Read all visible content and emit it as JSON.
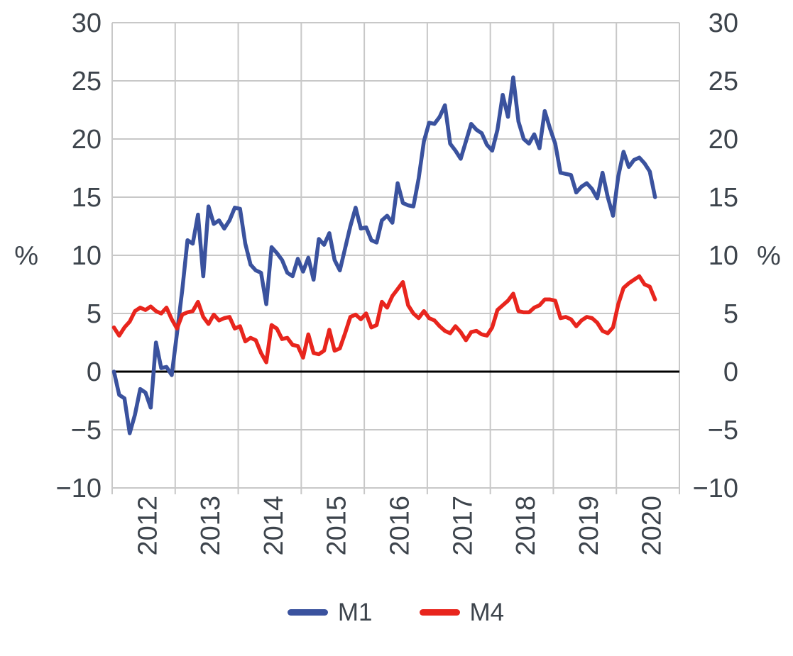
{
  "chart_data": {
    "type": "line",
    "title": "",
    "frequency": "monthly",
    "x_start": "2012-01",
    "x_end": "2020-08",
    "x_year_labels": [
      "2012",
      "2013",
      "2014",
      "2015",
      "2016",
      "2017",
      "2018",
      "2019",
      "2020"
    ],
    "ylim": [
      -10,
      30
    ],
    "y_ticks": [
      30,
      25,
      20,
      15,
      10,
      5,
      0,
      -5,
      -10
    ],
    "y_tick_labels": [
      "30",
      "25",
      "20",
      "15",
      "10",
      "5",
      "0",
      "−5",
      "−10"
    ],
    "ylabel_left": "%",
    "ylabel_right": "%",
    "grid": true,
    "zero_line": true,
    "legend_position": "bottom",
    "series": [
      {
        "name": "M1",
        "color": "#3a529e",
        "values": [
          0.0,
          -2.0,
          -2.3,
          -5.3,
          -3.7,
          -1.5,
          -1.8,
          -3.1,
          2.5,
          0.3,
          0.4,
          -0.3,
          3.3,
          7.0,
          11.3,
          11.0,
          13.5,
          8.2,
          14.2,
          12.7,
          13.0,
          12.3,
          13.0,
          14.1,
          14.0,
          11.0,
          9.2,
          8.7,
          8.5,
          5.8,
          10.7,
          10.2,
          9.6,
          8.5,
          8.2,
          9.7,
          8.6,
          9.8,
          7.9,
          11.4,
          10.9,
          11.9,
          9.6,
          8.7,
          10.6,
          12.5,
          14.1,
          12.3,
          12.4,
          11.3,
          11.1,
          13.0,
          13.4,
          12.8,
          16.2,
          14.5,
          14.3,
          14.2,
          16.6,
          19.8,
          21.4,
          21.3,
          21.9,
          22.9,
          19.6,
          19.0,
          18.3,
          19.8,
          21.3,
          20.8,
          20.5,
          19.5,
          19.0,
          20.8,
          23.8,
          21.9,
          25.3,
          21.5,
          20.0,
          19.6,
          20.4,
          19.2,
          22.4,
          20.9,
          19.6,
          17.1,
          17.0,
          16.9,
          15.4,
          15.9,
          16.2,
          15.7,
          14.9,
          17.1,
          15.0,
          13.4,
          16.8,
          18.9,
          17.6,
          18.2,
          18.4,
          17.9,
          17.2,
          15.0
        ]
      },
      {
        "name": "M4",
        "color": "#e8251d",
        "values": [
          3.8,
          3.1,
          3.8,
          4.3,
          5.2,
          5.5,
          5.3,
          5.6,
          5.2,
          5.0,
          5.5,
          4.5,
          3.7,
          4.9,
          5.1,
          5.2,
          6.0,
          4.7,
          4.1,
          4.9,
          4.4,
          4.6,
          4.7,
          3.7,
          3.9,
          2.6,
          2.9,
          2.7,
          1.6,
          0.8,
          4.0,
          3.7,
          2.8,
          2.9,
          2.3,
          2.2,
          1.2,
          3.2,
          1.6,
          1.5,
          1.8,
          3.6,
          1.8,
          2.0,
          3.3,
          4.7,
          4.9,
          4.5,
          5.0,
          3.8,
          4.0,
          6.0,
          5.5,
          6.5,
          7.1,
          7.7,
          5.7,
          5.0,
          4.6,
          5.2,
          4.6,
          4.4,
          3.9,
          3.5,
          3.3,
          3.9,
          3.4,
          2.7,
          3.4,
          3.5,
          3.2,
          3.1,
          3.8,
          5.3,
          5.7,
          6.1,
          6.7,
          5.2,
          5.1,
          5.1,
          5.5,
          5.7,
          6.2,
          6.2,
          6.1,
          4.6,
          4.7,
          4.5,
          3.9,
          4.4,
          4.7,
          4.6,
          4.2,
          3.5,
          3.3,
          3.8,
          5.8,
          7.2,
          7.6,
          7.9,
          8.2,
          7.5,
          7.3,
          6.2
        ]
      }
    ]
  },
  "colors": {
    "grid": "#c8c8c8",
    "axis_text": "#3d444c",
    "zero_line": "#000000",
    "background": "#ffffff"
  }
}
